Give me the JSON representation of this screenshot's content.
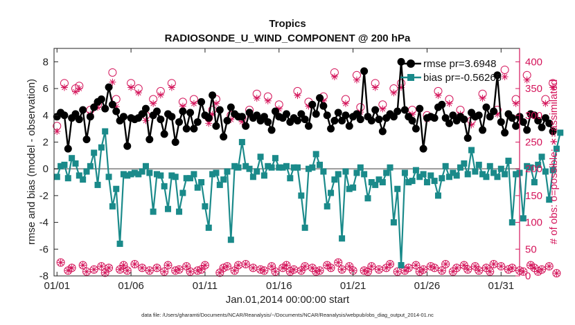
{
  "chart_data": {
    "type": "line",
    "title": "Tropics",
    "subtitle": "RADIOSONDE_U_WIND_COMPONENT @ 200 hPa",
    "xlabel": "Jan.01,2014 00:00:00 start",
    "ylabel": "rmse and bias (model - observation)",
    "ylabel_right": "# of obs: o=possible; ∗=assimilated",
    "x_tick_labels": [
      "01/01",
      "01/06",
      "01/11",
      "01/16",
      "01/21",
      "01/26",
      "01/31"
    ],
    "x_tick_days": [
      0,
      5,
      10,
      15,
      20,
      25,
      30
    ],
    "xlim": [
      -0.2,
      31.25
    ],
    "ylim": [
      -8,
      9
    ],
    "yticks": [
      -8,
      -6,
      -4,
      -2,
      0,
      2,
      4,
      6,
      8
    ],
    "ylim_right": [
      0,
      425
    ],
    "yticks_right": [
      0,
      50,
      100,
      150,
      200,
      250,
      300,
      350,
      400
    ],
    "samples_per_day": 4,
    "series": [
      {
        "name": "rmse",
        "legend": "rmse  pr=3.6948",
        "color": "#000000",
        "values": [
          3.9,
          4.2,
          4.0,
          1.5,
          3.8,
          4.1,
          3.7,
          4.4,
          2.2,
          3.9,
          4.6,
          5.0,
          5.2,
          4.5,
          6.1,
          4.8,
          4.3,
          3.6,
          3.9,
          1.7,
          3.8,
          3.7,
          3.8,
          4.1,
          4.5,
          2.2,
          4.0,
          4.3,
          3.7,
          2.6,
          4.1,
          3.9,
          2.0,
          3.5,
          4.3,
          3.0,
          4.2,
          3.0,
          3.5,
          5.0,
          4.0,
          3.8,
          5.5,
          3.2,
          4.4,
          2.4,
          3.6,
          4.6,
          4.1,
          3.9,
          3.9,
          3.2,
          4.2,
          3.8,
          4.0,
          3.6,
          3.9,
          3.5,
          2.9,
          4.3,
          3.9,
          3.8,
          4.1,
          3.5,
          3.8,
          3.6,
          4.1,
          3.7,
          3.2,
          4.8,
          4.1,
          5.3,
          4.7,
          4.0,
          3.0,
          3.6,
          4.2,
          3.6,
          4.0,
          3.2,
          3.9,
          4.1,
          3.7,
          7.3,
          3.9,
          3.6,
          4.4,
          3.7,
          2.8,
          3.8,
          4.1,
          3.9,
          4.3,
          8.0,
          4.4,
          3.9,
          3.6,
          3.0,
          4.5,
          1.5,
          3.8,
          3.9,
          3.8,
          4.6,
          4.8,
          3.8,
          3.4,
          4.0,
          3.6,
          3.9,
          3.7,
          2.3,
          4.2,
          3.9,
          4.0,
          2.9,
          4.6,
          3.9,
          4.3,
          7.0,
          3.5,
          2.7,
          4.1,
          3.8,
          3.2,
          3.9,
          3.5,
          2.9,
          4.1,
          4.0,
          3.6,
          3.1,
          3.8,
          3.4,
          2.8
        ]
      },
      {
        "name": "bias",
        "legend": "bias  pr=-0.56265",
        "color": "#1a8a8a",
        "values": [
          -0.6,
          0.2,
          0.3,
          -0.7,
          0.8,
          0.4,
          -0.5,
          -0.8,
          -0.2,
          0.2,
          1.2,
          -1.2,
          1.6,
          2.8,
          -0.6,
          -2.8,
          -1.5,
          -5.6,
          -0.4,
          -0.5,
          -0.4,
          -0.3,
          -0.4,
          -0.2,
          0.2,
          -0.3,
          -3.2,
          -0.4,
          -0.5,
          -1.3,
          -3.0,
          -0.5,
          -0.6,
          -3.2,
          -1.8,
          -0.7,
          -0.7,
          -0.4,
          -1.4,
          -1.0,
          -2.8,
          -4.4,
          -0.4,
          -0.3,
          -1.2,
          -0.8,
          -0.2,
          -5.3,
          0.2,
          0.1,
          2.0,
          0.2,
          0.0,
          -0.6,
          -0.2,
          0.9,
          -0.5,
          0.2,
          0.1,
          0.8,
          0.1,
          0.1,
          0.2,
          -0.7,
          0.1,
          0.1,
          -2.0,
          -4.4,
          0.0,
          0.1,
          1.1,
          0.3,
          -0.2,
          -2.8,
          -1.8,
          -0.8,
          -0.4,
          -5.2,
          -0.2,
          -1.5,
          -1.4,
          -0.3,
          0.1,
          -0.4,
          -2.2,
          -1.0,
          -1.2,
          -0.8,
          -1.0,
          -0.3,
          0.1,
          -4.0,
          -1.5,
          -7.2,
          -0.3,
          -1.0,
          -0.9,
          -0.1,
          -0.6,
          -0.4,
          -1.0,
          -0.5,
          -0.9,
          -2.0,
          -0.7,
          0.2,
          -0.6,
          -0.3,
          -0.5,
          0.1,
          0.4,
          -0.4,
          1.4,
          -0.2,
          0.3,
          -0.4,
          -0.6,
          0.2,
          -0.3,
          -0.6,
          0.0,
          -0.4,
          0.6,
          -4.0,
          -0.4,
          -0.3,
          -3.7,
          0.2,
          0.1,
          -1.0,
          0.3,
          0.9,
          -0.2,
          -2.3,
          -0.1,
          1.5,
          2.7
        ]
      },
      {
        "name": "possible",
        "legend": "",
        "color": "#d4145a",
        "marker": "o",
        "axis": "right",
        "values": [
          280,
          25,
          360,
          10,
          15,
          350,
          355,
          20,
          8,
          310,
          12,
          320,
          18,
          6,
          15,
          380,
          330,
          12,
          20,
          10,
          360,
          22,
          350,
          15,
          300,
          10,
          330,
          15,
          345,
          8,
          20,
          360,
          10,
          12,
          325,
          18,
          8,
          330,
          10,
          12,
          20,
          295,
          310,
          330,
          6,
          15,
          18,
          300,
          10,
          20,
          295,
          22,
          310,
          15,
          340,
          12,
          10,
          335,
          18,
          8,
          320,
          15,
          20,
          8,
          12,
          345,
          10,
          18,
          325,
          15,
          8,
          10,
          335,
          20,
          15,
          380,
          25,
          12,
          330,
          18,
          10,
          375,
          315,
          10,
          8,
          18,
          360,
          12,
          320,
          15,
          22,
          350,
          8,
          360,
          10,
          15,
          310,
          20,
          8,
          12,
          300,
          18,
          15,
          345,
          10,
          22,
          330,
          8,
          15,
          310,
          20,
          12,
          290,
          18,
          10,
          340,
          15,
          8,
          22,
          310,
          18,
          385,
          12,
          15,
          330,
          10,
          8,
          375,
          20,
          15,
          8,
          12,
          330,
          18,
          360,
          5
        ]
      },
      {
        "name": "assimilated",
        "legend": "",
        "color": "#d4145a",
        "marker": "*",
        "axis": "right",
        "values": [
          270,
          25,
          352,
          10,
          15,
          344,
          350,
          20,
          8,
          302,
          12,
          315,
          18,
          6,
          15,
          362,
          316,
          12,
          20,
          10,
          352,
          22,
          342,
          15,
          290,
          10,
          322,
          15,
          338,
          8,
          20,
          352,
          10,
          12,
          317,
          18,
          8,
          322,
          10,
          12,
          20,
          285,
          302,
          322,
          6,
          15,
          18,
          292,
          10,
          20,
          288,
          22,
          302,
          15,
          332,
          12,
          10,
          327,
          18,
          8,
          312,
          15,
          20,
          8,
          12,
          337,
          10,
          18,
          317,
          15,
          8,
          10,
          327,
          20,
          15,
          372,
          25,
          12,
          322,
          18,
          10,
          366,
          306,
          10,
          8,
          18,
          352,
          12,
          312,
          15,
          22,
          342,
          8,
          352,
          10,
          15,
          302,
          20,
          8,
          12,
          292,
          18,
          15,
          337,
          10,
          22,
          322,
          8,
          15,
          302,
          20,
          12,
          282,
          18,
          10,
          332,
          15,
          8,
          22,
          302,
          18,
          372,
          12,
          15,
          322,
          10,
          8,
          366,
          20,
          15,
          8,
          12,
          322,
          18,
          352,
          5
        ]
      }
    ]
  },
  "footer": {
    "data_file": "data file: /Users/gharamti/Documents/NCAR/Reanalysis/~/Documents/NCAR/Reanalysis/webpub/obs_diag_output_2014-01.nc"
  },
  "colors": {
    "rmse": "#000000",
    "bias": "#1a8a8a",
    "obs": "#d4145a",
    "zero_line": "#999999"
  }
}
